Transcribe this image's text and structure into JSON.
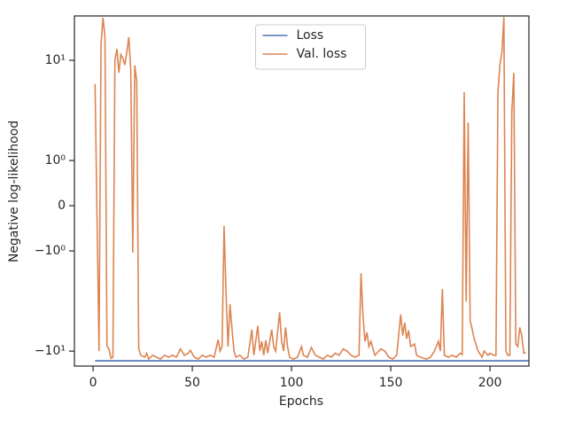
{
  "chart_data": {
    "type": "line",
    "xlabel": "Epochs",
    "ylabel": "Negative log-likelihood",
    "xlim": [
      -9.4,
      219.6
    ],
    "xticks": [
      0,
      50,
      100,
      150,
      200
    ],
    "ylim": [
      -14.1,
      27.7
    ],
    "yscale": "symlog",
    "linthresh": 1,
    "linscale": 0.406,
    "yticks": [
      {
        "value": -10,
        "label": "−10¹"
      },
      {
        "value": -1,
        "label": "−10⁰"
      },
      0,
      {
        "value": 1,
        "label": "10⁰"
      },
      {
        "value": 10,
        "label": "10¹"
      }
    ],
    "legend": "upper center",
    "series": [
      {
        "name": "Loss",
        "color": "#4c72b0",
        "x": [
          1,
          220
        ],
        "values": [
          -12.5,
          -12.5
        ]
      },
      {
        "name": "Val. loss",
        "color": "#dd8452",
        "x": [
          1,
          3,
          4,
          5,
          6,
          7,
          8,
          9,
          10,
          11,
          12,
          13,
          14,
          15,
          16,
          17,
          18,
          19,
          20,
          21,
          22,
          23,
          24,
          26,
          27,
          28,
          30,
          32,
          34,
          36,
          38,
          40,
          42,
          44,
          46,
          48,
          49,
          51,
          53,
          55,
          57,
          59,
          61,
          63,
          64,
          65,
          66,
          67,
          68,
          69,
          70,
          71,
          72,
          74,
          76,
          78,
          80,
          81,
          83,
          84,
          85,
          86,
          87,
          88,
          90,
          91,
          92,
          94,
          95,
          96,
          97,
          98,
          99,
          101,
          103,
          105,
          106,
          108,
          110,
          112,
          114,
          116,
          118,
          120,
          122,
          124,
          126,
          128,
          130,
          132,
          134,
          135,
          136,
          137,
          138,
          139,
          140,
          142,
          144,
          145,
          147,
          149,
          151,
          153,
          155,
          156,
          157,
          158,
          159,
          160,
          162,
          163,
          165,
          168,
          170,
          172,
          174,
          175,
          176,
          177,
          179,
          181,
          183,
          185,
          186,
          187,
          188,
          189,
          190,
          191,
          192,
          194,
          196,
          197,
          199,
          200,
          202,
          203,
          204,
          205,
          206,
          207,
          208,
          209,
          210,
          211,
          212,
          213,
          214,
          215,
          216,
          217,
          218
        ],
        "values": [
          5.8,
          -10,
          14.4,
          26.6,
          17,
          -8.9,
          -9.5,
          -11.8,
          -11.5,
          10,
          13,
          7.5,
          11.4,
          10.5,
          9,
          12,
          17,
          8,
          -1.04,
          8.9,
          6.2,
          -9.4,
          -11,
          -11.5,
          -10.5,
          -12,
          -11,
          -11.5,
          -12,
          -11,
          -11.5,
          -11,
          -11.5,
          -9.5,
          -11,
          -10.5,
          -9.8,
          -11.5,
          -12,
          -11,
          -11.5,
          -11,
          -11.5,
          -7.7,
          -10,
          -9,
          -0.45,
          -2.6,
          -9,
          -3.4,
          -6,
          -10,
          -11.5,
          -11,
          -12,
          -11.5,
          -6.1,
          -11,
          -5.6,
          -10,
          -8,
          -11,
          -7.8,
          -10.5,
          -6.1,
          -9,
          -10,
          -4.1,
          -8,
          -10,
          -5.8,
          -9,
          -11.5,
          -12,
          -11.5,
          -9,
          -11,
          -11.5,
          -9.2,
          -11,
          -11.5,
          -12,
          -11,
          -11.5,
          -10.5,
          -11,
          -9.5,
          -10,
          -11,
          -11.5,
          -11,
          -1.67,
          -4.4,
          -8,
          -6.5,
          -9,
          -8,
          -11,
          -10,
          -9.5,
          -10,
          -11.5,
          -12,
          -11,
          -4.3,
          -7,
          -5.2,
          -7.5,
          -6.2,
          -9,
          -8.5,
          -11,
          -11.5,
          -12,
          -11.5,
          -10,
          -8,
          -10,
          -2.4,
          -11,
          -11.5,
          -11,
          -11.5,
          -10.5,
          -10.8,
          4.8,
          -3.2,
          2.4,
          -5,
          -6,
          -7.5,
          -10,
          -11.5,
          -10,
          -11,
          -10.5,
          -11,
          -11,
          4.8,
          9,
          12,
          27,
          -10,
          -11,
          -11,
          3.1,
          7.5,
          -8.5,
          -9,
          -5.8,
          -7,
          -10.5,
          -10.3
        ]
      }
    ]
  }
}
